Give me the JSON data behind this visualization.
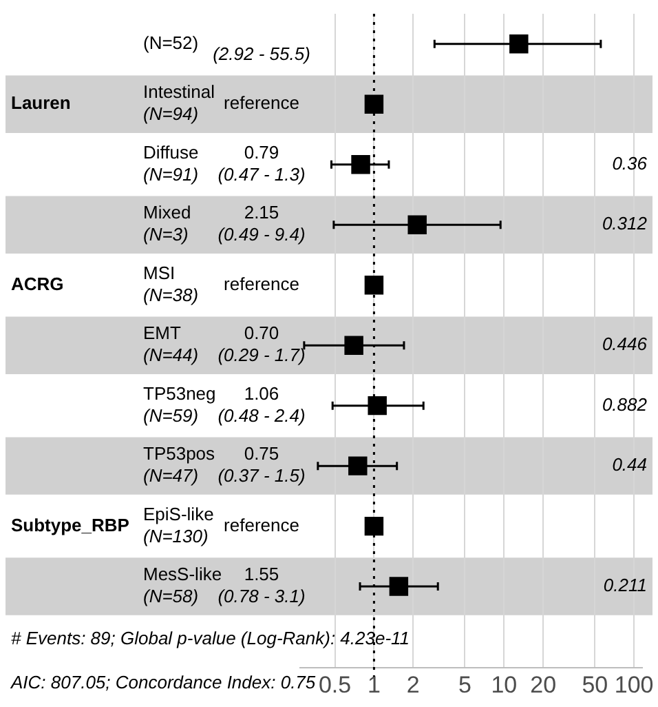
{
  "chart_data": {
    "type": "scatter",
    "orientation": "horizontal",
    "log": "x",
    "marker": "square",
    "color": "#000000",
    "categories": [
      "(N=52)",
      "Intestinal\n(N=94)",
      "Diffuse\n(N=91)",
      "Mixed\n(N=3)",
      "MSI\n(N=38)",
      "EMT\n(N=44)",
      "TP53neg\n(N=59)",
      "TP53pos\n(N=47)",
      "EpiS-like\n(N=130)",
      "MesS-like\n(N=58)"
    ],
    "y2_categories": [
      null,
      null,
      "0.36",
      "0.312",
      null,
      "0.446",
      "0.882",
      "0.44",
      null,
      "0.211"
    ],
    "values": [
      13,
      1,
      0.79,
      2.15,
      1,
      0.7,
      1.06,
      0.75,
      1,
      1.55
    ],
    "errors": [
      [
        2.92,
        55.5
      ],
      null,
      [
        0.47,
        1.3
      ],
      [
        0.49,
        9.4
      ],
      null,
      [
        0.29,
        1.7
      ],
      [
        0.48,
        2.4
      ],
      [
        0.37,
        1.5
      ],
      null,
      [
        0.78,
        3.1
      ]
    ],
    "value_labels": [
      "\n(2.92 - 55.5)",
      "reference",
      "0.79\n(0.47 - 1.3)",
      "2.15\n(0.49 - 9.4)",
      "reference",
      "0.70\n(0.29 - 1.7)",
      "1.06\n(0.48 - 2.4)",
      "0.75\n(0.37 - 1.5)",
      "reference",
      "1.55\n(0.78 - 3.1)"
    ],
    "annotations": [
      "Lauren",
      "ACRG",
      "Subtype_RBP",
      "# Events: 89; Global p-value (Log-Rank): 4.23e-11",
      "AIC: 807.05; Concordance Index: 0.75"
    ],
    "xlim": [
      0.27,
      115
    ],
    "xticks": [
      0.5,
      1,
      2,
      5,
      10,
      20,
      50,
      100
    ],
    "ref_lines": [
      {
        "axis": "x",
        "value": 1,
        "line_style": "dotted"
      }
    ],
    "grid": "x"
  }
}
